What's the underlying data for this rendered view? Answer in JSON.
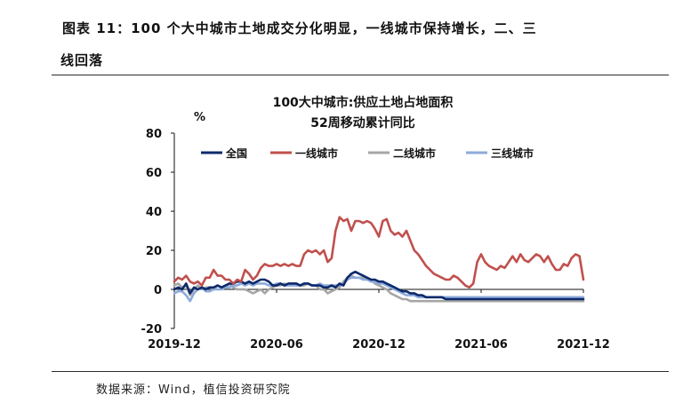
{
  "figure": {
    "title_line1": "图表 11：100 个大中城市土地成交分化明显，一线城市保持增长，二、三",
    "title_line2": "线回落",
    "source": "数据来源：Wind，植信投资研究院"
  },
  "colors": {
    "national": "#0d2a6b",
    "tier1": "#c0504d",
    "tier2": "#a6a6a6",
    "tier3": "#8eaadb"
  },
  "chart_data": {
    "type": "line",
    "title": "100大中城市:供应土地占地面积",
    "subtitle": "52周移动累计同比",
    "ylabel": "%",
    "ylim": [
      -20,
      80
    ],
    "yticks": [
      -20,
      0,
      20,
      40,
      60,
      80
    ],
    "xticks": [
      "2019-12",
      "2020-06",
      "2020-12",
      "2021-06",
      "2021-12"
    ],
    "legend_position": "top",
    "x": [
      0,
      1,
      2,
      3,
      4,
      5,
      6,
      7,
      8,
      9,
      10,
      11,
      12,
      13,
      14,
      15,
      16,
      17,
      18,
      19,
      20,
      21,
      22,
      23,
      24,
      25,
      26,
      27,
      28,
      29,
      30,
      31,
      32,
      33,
      34,
      35,
      36,
      37,
      38,
      39,
      40,
      41,
      42,
      43,
      44,
      45,
      46,
      47,
      48,
      49,
      50,
      51,
      52,
      53,
      54,
      55,
      56,
      57,
      58,
      59,
      60,
      61,
      62,
      63,
      64,
      65,
      66,
      67,
      68,
      69,
      70,
      71,
      72,
      73,
      74,
      75,
      76,
      77,
      78,
      79,
      80,
      81,
      82,
      83,
      84,
      85,
      86,
      87,
      88,
      89,
      90,
      91,
      92,
      93,
      94,
      95,
      96,
      97,
      98,
      99,
      100,
      101,
      102,
      103,
      104
    ],
    "series": [
      {
        "name": "全国",
        "color_key": "national",
        "values": [
          0,
          1,
          0,
          3,
          -2,
          1,
          0,
          1,
          0,
          1,
          1,
          2,
          1,
          2,
          3,
          3,
          4,
          4,
          3,
          4,
          3,
          4,
          5,
          5,
          4,
          2,
          2,
          3,
          2,
          3,
          3,
          3,
          2,
          3,
          3,
          2,
          2,
          2,
          1,
          1,
          2,
          1,
          3,
          2,
          6,
          8,
          9,
          8,
          7,
          6,
          5,
          5,
          4,
          4,
          3,
          2,
          1,
          0,
          -1,
          -1,
          -2,
          -2,
          -3,
          -3,
          -4,
          -4,
          -4,
          -4,
          -4,
          -5,
          -5,
          -5,
          -5,
          -5,
          -5,
          -5,
          -5,
          -5,
          -5,
          -5,
          -5,
          -5,
          -5,
          -5,
          -5,
          -5,
          -5,
          -5,
          -5,
          -5,
          -5,
          -5,
          -5,
          -5,
          -5,
          -5,
          -5,
          -5,
          -5,
          -5,
          -5,
          -5,
          -5,
          -5,
          -5
        ]
      },
      {
        "name": "一线城市",
        "color_key": "tier1",
        "values": [
          4,
          6,
          5,
          7,
          4,
          3,
          4,
          2,
          6,
          6,
          10,
          7,
          7,
          5,
          5,
          3,
          5,
          4,
          10,
          8,
          5,
          7,
          11,
          13,
          12,
          12,
          13,
          12,
          13,
          12,
          13,
          12,
          12,
          18,
          20,
          19,
          20,
          18,
          20,
          14,
          16,
          30,
          37,
          35,
          36,
          30,
          35,
          35,
          34,
          35,
          34,
          31,
          27,
          35,
          36,
          30,
          28,
          29,
          27,
          30,
          25,
          20,
          18,
          15,
          12,
          10,
          8,
          7,
          6,
          5,
          5,
          7,
          6,
          4,
          2,
          1,
          3,
          14,
          18,
          14,
          12,
          11,
          10,
          12,
          11,
          14,
          17,
          14,
          18,
          15,
          14,
          16,
          18,
          17,
          14,
          17,
          13,
          10,
          10,
          13,
          12,
          16,
          18,
          17,
          5
        ]
      },
      {
        "name": "二线城市",
        "color_key": "tier2",
        "values": [
          2,
          3,
          1,
          2,
          -3,
          0,
          2,
          0,
          1,
          1,
          0,
          2,
          1,
          1,
          3,
          1,
          0,
          0,
          0,
          -1,
          -2,
          -1,
          0,
          -2,
          0,
          1,
          2,
          2,
          3,
          2,
          3,
          3,
          2,
          2,
          3,
          2,
          2,
          0,
          0,
          -2,
          -1,
          0,
          1,
          4,
          6,
          7,
          6,
          6,
          6,
          6,
          5,
          3,
          2,
          1,
          0,
          -2,
          -3,
          -4,
          -5,
          -5,
          -6,
          -6,
          -6,
          -6,
          -6,
          -6,
          -6,
          -6,
          -6,
          -6,
          -6,
          -6,
          -6,
          -6,
          -6,
          -6,
          -6,
          -6,
          -6,
          -6,
          -6,
          -6,
          -6,
          -6,
          -6,
          -6,
          -6,
          -6,
          -6,
          -6,
          -6,
          -6,
          -6,
          -6,
          -6,
          -6,
          -6,
          -6,
          -6,
          -6,
          -6,
          -6,
          -6,
          -6,
          -6
        ]
      },
      {
        "name": "三线城市",
        "color_key": "tier3",
        "values": [
          -2,
          -1,
          -1,
          -3,
          -6,
          -2,
          0,
          1,
          -1,
          -1,
          0,
          0,
          0,
          1,
          1,
          2,
          2,
          3,
          2,
          3,
          2,
          3,
          3,
          3,
          2,
          2,
          3,
          3,
          2,
          2,
          2,
          2,
          2,
          3,
          3,
          2,
          2,
          3,
          2,
          2,
          2,
          2,
          2,
          3,
          5,
          6,
          6,
          6,
          5,
          5,
          4,
          4,
          3,
          3,
          2,
          1,
          0,
          -1,
          -2,
          -3,
          -3,
          -3,
          -4,
          -4,
          -4,
          -4,
          -4,
          -4,
          -4,
          -4,
          -4,
          -4,
          -4,
          -4,
          -4,
          -4,
          -4,
          -4,
          -4,
          -4,
          -4,
          -4,
          -4,
          -4,
          -4,
          -4,
          -4,
          -4,
          -4,
          -4,
          -4,
          -4,
          -4,
          -4,
          -4,
          -4,
          -4,
          -4,
          -4,
          -4,
          -4,
          -4,
          -4,
          -4,
          -4
        ]
      }
    ]
  }
}
